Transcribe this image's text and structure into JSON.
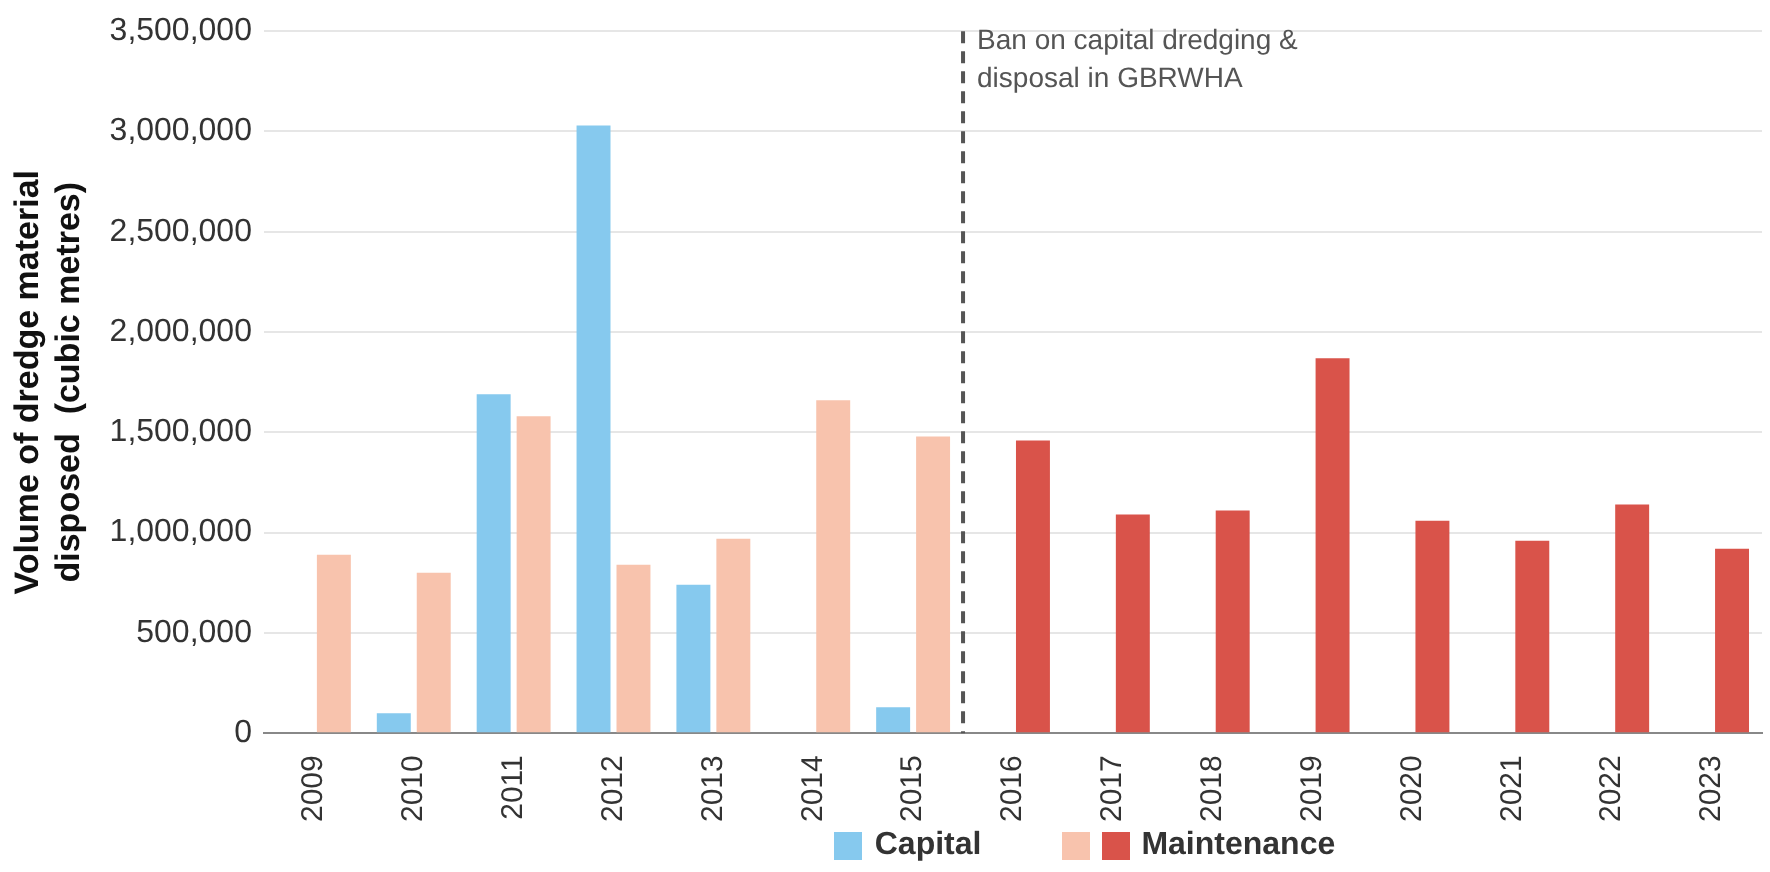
{
  "chart_data": {
    "type": "bar",
    "ylabel": "Volume of dredge material\ndisposed  (cubic metres)",
    "categories": [
      "2009",
      "2010",
      "2011",
      "2012",
      "2013",
      "2014",
      "2015",
      "2016",
      "2017",
      "2018",
      "2019",
      "2020",
      "2021",
      "2022",
      "2023"
    ],
    "series": [
      {
        "name": "Capital",
        "color": "#86c9ee",
        "values": [
          null,
          100000,
          1690000,
          3030000,
          740000,
          null,
          130000,
          null,
          null,
          null,
          null,
          null,
          null,
          null,
          null
        ]
      },
      {
        "name": "Maintenance",
        "colors": [
          "#f8c3ad",
          "#f8c3ad",
          "#f8c3ad",
          "#f8c3ad",
          "#f8c3ad",
          "#f8c3ad",
          "#f8c3ad",
          "#d9534a",
          "#d9534a",
          "#d9534a",
          "#d9534a",
          "#d9534a",
          "#d9534a",
          "#d9534a",
          "#d9534a"
        ],
        "values": [
          890000,
          800000,
          1580000,
          840000,
          970000,
          1660000,
          1480000,
          1460000,
          1090000,
          1110000,
          1870000,
          1060000,
          960000,
          1140000,
          920000
        ]
      }
    ],
    "ylim": [
      0,
      3500000
    ],
    "yticks": [
      0,
      {
        "value": 500000,
        "label": "500,000"
      },
      {
        "value": 1000000,
        "label": "1,000,000"
      },
      {
        "value": 1500000,
        "label": "1,500,000"
      },
      {
        "value": 2000000,
        "label": "2,000,000"
      },
      {
        "value": 2500000,
        "label": "2,500,000"
      },
      {
        "value": 3000000,
        "label": "3,000,000"
      },
      {
        "value": 3500000,
        "label": "3,500,000"
      }
    ],
    "grid": "y",
    "legend": "bottom",
    "ref_lines": [
      {
        "axis": "x",
        "value": "2016",
        "label": "Ban on capital dredging & disposal in GBRWHA",
        "color": "#555555",
        "line_style": "dashed"
      }
    ]
  }
}
